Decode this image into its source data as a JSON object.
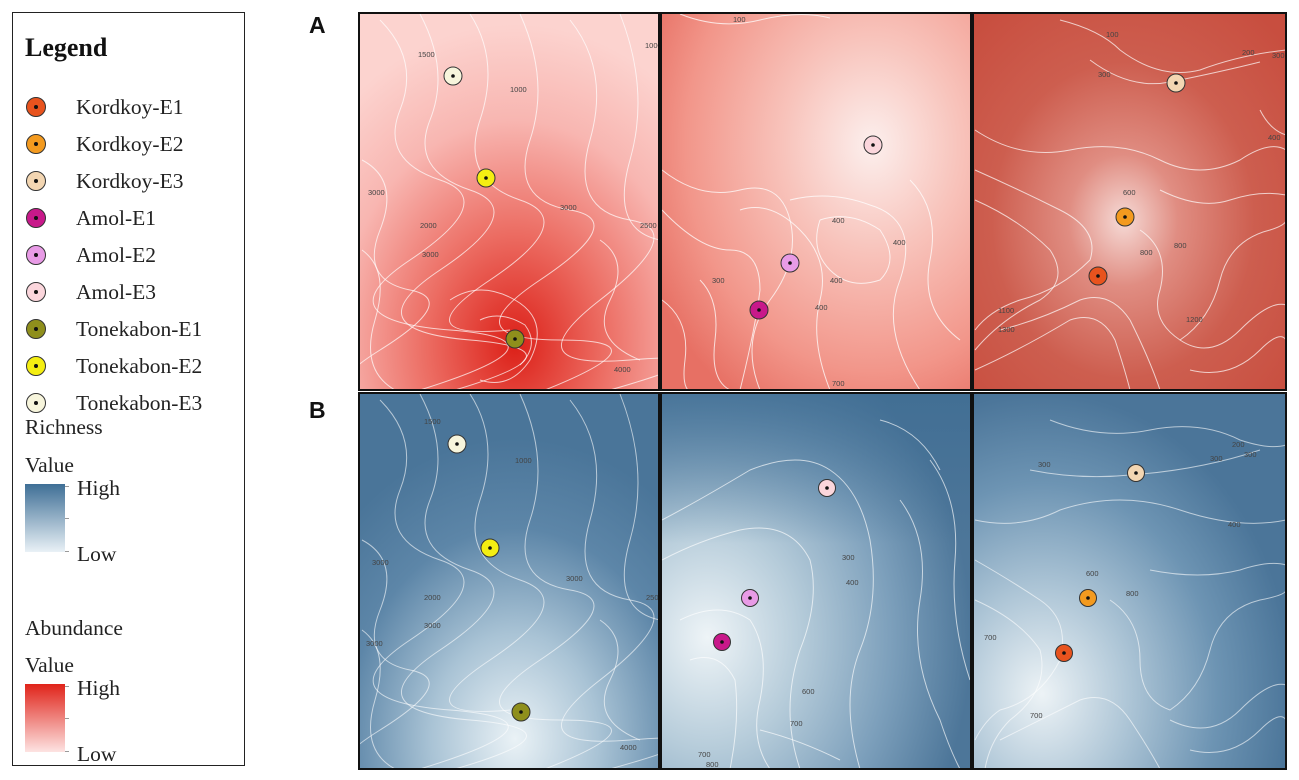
{
  "legend": {
    "title": "Legend",
    "sites": [
      {
        "label": "Kordkoy-E1",
        "color": "#e8531e"
      },
      {
        "label": "Kordkoy-E2",
        "color": "#f39a1f"
      },
      {
        "label": "Kordkoy-E3",
        "color": "#f3d6b2"
      },
      {
        "label": "Amol-E1",
        "color": "#c8198a"
      },
      {
        "label": "Amol-E2",
        "color": "#e89be6"
      },
      {
        "label": "Amol-E3",
        "color": "#fbd6dc"
      },
      {
        "label": "Tonekabon-E1",
        "color": "#8f8f1c"
      },
      {
        "label": "Tonekabon-E2",
        "color": "#f4ee12"
      },
      {
        "label": "Tonekabon-E3",
        "color": "#f7f5dc"
      }
    ],
    "richness": {
      "title": "Richness",
      "value_label": "Value",
      "high": "High",
      "low": "Low",
      "color_high": "#3f6f96",
      "color_low": "#e9f1f6"
    },
    "abundance": {
      "title": "Abundance",
      "value_label": "Value",
      "high": "High",
      "low": "Low",
      "color_high": "#e0241a",
      "color_low": "#fde3e2"
    }
  },
  "panels": {
    "row_a_label": "A",
    "row_b_label": "B"
  },
  "contour_labels": {
    "a1": [
      "1500",
      "1000",
      "1000",
      "3000",
      "3000",
      "2000",
      "3000",
      "2500",
      "4000"
    ],
    "a2": [
      "100",
      "400",
      "400",
      "400",
      "300",
      "400",
      "700"
    ],
    "a3": [
      "100",
      "200",
      "300",
      "300",
      "400",
      "600",
      "800",
      "800",
      "1100",
      "1300",
      "1200"
    ],
    "b1": [
      "1500",
      "1000",
      "3000",
      "3000",
      "2000",
      "3000",
      "3000",
      "2500",
      "4000"
    ],
    "b2": [
      "300",
      "400",
      "600",
      "700",
      "700",
      "800"
    ],
    "b3": [
      "200",
      "300",
      "300",
      "300",
      "400",
      "600",
      "800",
      "700",
      "700"
    ]
  }
}
